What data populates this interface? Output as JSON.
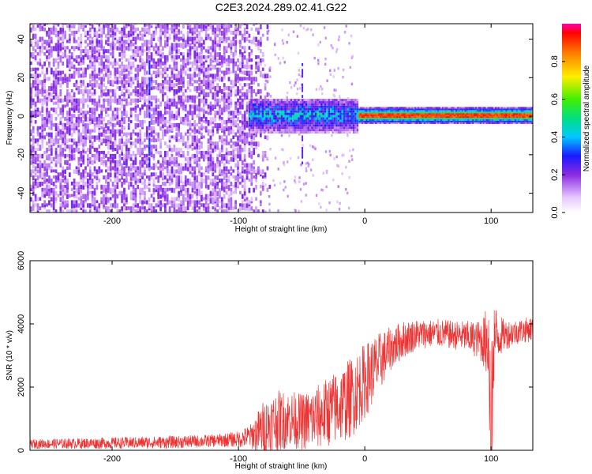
{
  "title": "C2E3.2024.289.02.41.G22",
  "colors": {
    "snr_line": "#ee3333",
    "axis": "#000000"
  },
  "chart_data": [
    {
      "type": "heatmap",
      "xlabel": "Height of straight line (km)",
      "ylabel": "Frequency (Hz)",
      "xlim": [
        -265,
        133
      ],
      "ylim": [
        -50,
        48
      ],
      "xticks": [
        -200,
        -100,
        0,
        100
      ],
      "xtick_labels": [
        "-200",
        "-100",
        "0",
        "100"
      ],
      "yticks": [
        -40,
        -20,
        0,
        20,
        40
      ],
      "ytick_labels": [
        "-40",
        "-20",
        "0",
        "20",
        "40"
      ],
      "colorbar": {
        "label": "Normalized spectral amplitude",
        "range": [
          0,
          1
        ],
        "ticks": [
          0,
          0.2,
          0.4,
          0.6,
          0.8
        ],
        "tick_labels": [
          "0.0",
          "0.2",
          "0.4",
          "0.6",
          "0.8"
        ],
        "colormap": "rainbow"
      },
      "description_regions": [
        {
          "x_range": [
            -265,
            -80
          ],
          "freq_range": [
            -50,
            48
          ],
          "amplitude": 0.15,
          "pattern": "noise"
        },
        {
          "x_range": [
            -90,
            -5
          ],
          "freq_range": [
            -8,
            8
          ],
          "amplitude": 0.4,
          "pattern": "band"
        },
        {
          "x_range": [
            -5,
            133
          ],
          "freq_range": [
            -2,
            2
          ],
          "amplitude": 0.9,
          "pattern": "carrier"
        }
      ]
    },
    {
      "type": "line",
      "xlabel": "Height of straight line (km)",
      "ylabel": "SNR (10 * v/v)",
      "xlim": [
        -265,
        133
      ],
      "ylim": [
        0,
        6000
      ],
      "xticks": [
        -200,
        -100,
        0,
        100
      ],
      "xtick_labels": [
        "-200",
        "-100",
        "0",
        "100"
      ],
      "yticks": [
        0,
        2000,
        4000,
        6000
      ],
      "ytick_labels": [
        "0",
        "2000",
        "4000",
        "6000"
      ],
      "series": [
        {
          "envelope_x": [
            -265,
            -200,
            -150,
            -120,
            -100,
            -90,
            -80,
            -70,
            -60,
            -50,
            -40,
            -30,
            -20,
            -10,
            0,
            10,
            20,
            30,
            40,
            50,
            60,
            70,
            80,
            90,
            95,
            98,
            100,
            102,
            105,
            110,
            120,
            133
          ],
          "envelope_y": [
            200,
            230,
            260,
            300,
            350,
            450,
            700,
            900,
            1000,
            900,
            1000,
            1200,
            1400,
            1700,
            2200,
            2700,
            3200,
            3500,
            3650,
            3700,
            3700,
            3650,
            3600,
            3500,
            3450,
            3550,
            100,
            3500,
            3600,
            3650,
            3750,
            3850
          ],
          "noise_amplitude": [
            150,
            180,
            200,
            200,
            250,
            400,
            900,
            1000,
            900,
            900,
            1000,
            1100,
            1200,
            1300,
            1200,
            1000,
            700,
            600,
            500,
            450,
            450,
            450,
            500,
            600,
            900,
            1500,
            3000,
            1500,
            800,
            500,
            400,
            400
          ]
        }
      ]
    }
  ]
}
